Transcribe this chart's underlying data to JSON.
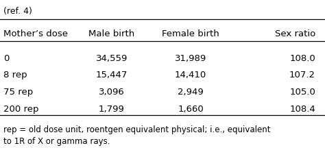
{
  "caption": "(ref. 4)",
  "columns": [
    "Mother’s dose",
    "Male birth",
    "Female birth",
    "Sex ratio"
  ],
  "rows": [
    [
      "0",
      "34,559",
      "31,989",
      "108.0"
    ],
    [
      "8 rep",
      "15,447",
      "14,410",
      "107.2"
    ],
    [
      "75 rep",
      "3,096",
      "2,949",
      "105.0"
    ],
    [
      "200 rep",
      "1,799",
      "1,660",
      "108.4"
    ]
  ],
  "footnote_line1": "rep = old dose unit, roentgen equivalent physical; i.e., equivalent",
  "footnote_line2": "to 1R of X or gamma rays.",
  "background_color": "#ffffff",
  "text_color": "#000000",
  "font_size": 9.5,
  "caption_font_size": 9.0,
  "footnote_font_size": 8.5
}
